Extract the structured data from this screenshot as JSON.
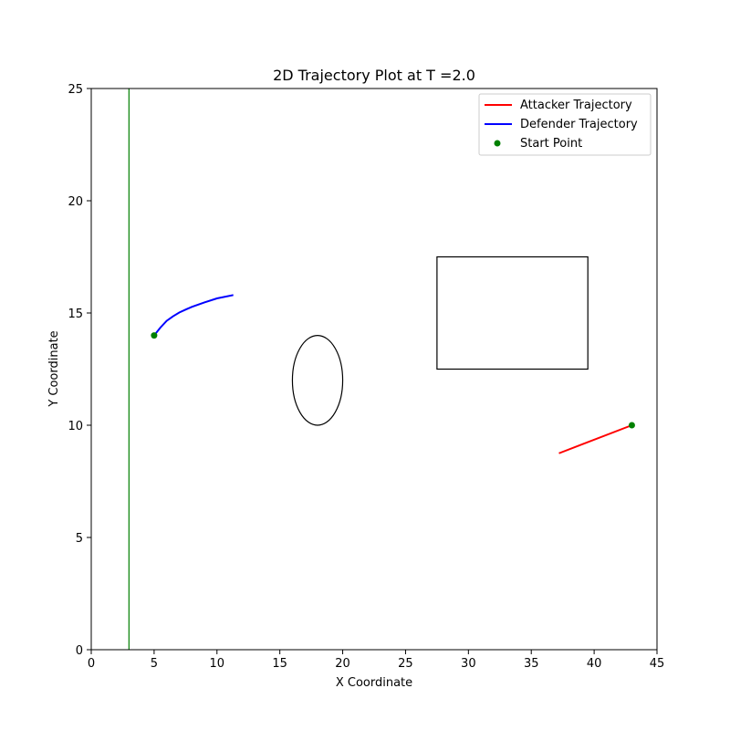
{
  "chart_data": {
    "type": "line",
    "title": "2D Trajectory Plot at T =2.0",
    "xlabel": "X Coordinate",
    "ylabel": "Y Coordinate",
    "xlim": [
      0,
      45
    ],
    "ylim": [
      0,
      25
    ],
    "xticks": [
      0,
      5,
      10,
      15,
      20,
      25,
      30,
      35,
      40,
      45
    ],
    "yticks": [
      0,
      5,
      10,
      15,
      20,
      25
    ],
    "grid": false,
    "legend_position": "top-right",
    "series": [
      {
        "name": "Attacker Trajectory",
        "color": "#ff0000",
        "x": [
          43.0,
          37.2
        ],
        "y": [
          10.0,
          8.75
        ]
      },
      {
        "name": "Defender Trajectory",
        "color": "#0000ff",
        "x": [
          5.0,
          5.5,
          6.0,
          6.5,
          7.0,
          7.5,
          8.0,
          9.0,
          10.0,
          11.3
        ],
        "y": [
          14.0,
          14.35,
          14.65,
          14.85,
          15.02,
          15.15,
          15.27,
          15.47,
          15.65,
          15.8
        ]
      }
    ],
    "start_points": {
      "name": "Start Point",
      "color": "#008000",
      "points": [
        [
          5.0,
          14.0
        ],
        [
          43.0,
          10.0
        ]
      ]
    },
    "boundary_line": {
      "color": "#008000",
      "x": 3.0,
      "y_range": [
        0,
        25
      ]
    },
    "obstacles": [
      {
        "shape": "ellipse",
        "center": [
          18.0,
          12.0
        ],
        "width": 4.0,
        "height": 4.0,
        "color": "#000000"
      },
      {
        "shape": "rectangle",
        "x_range": [
          27.5,
          39.5
        ],
        "y_range": [
          12.5,
          17.5
        ],
        "color": "#000000"
      }
    ]
  }
}
